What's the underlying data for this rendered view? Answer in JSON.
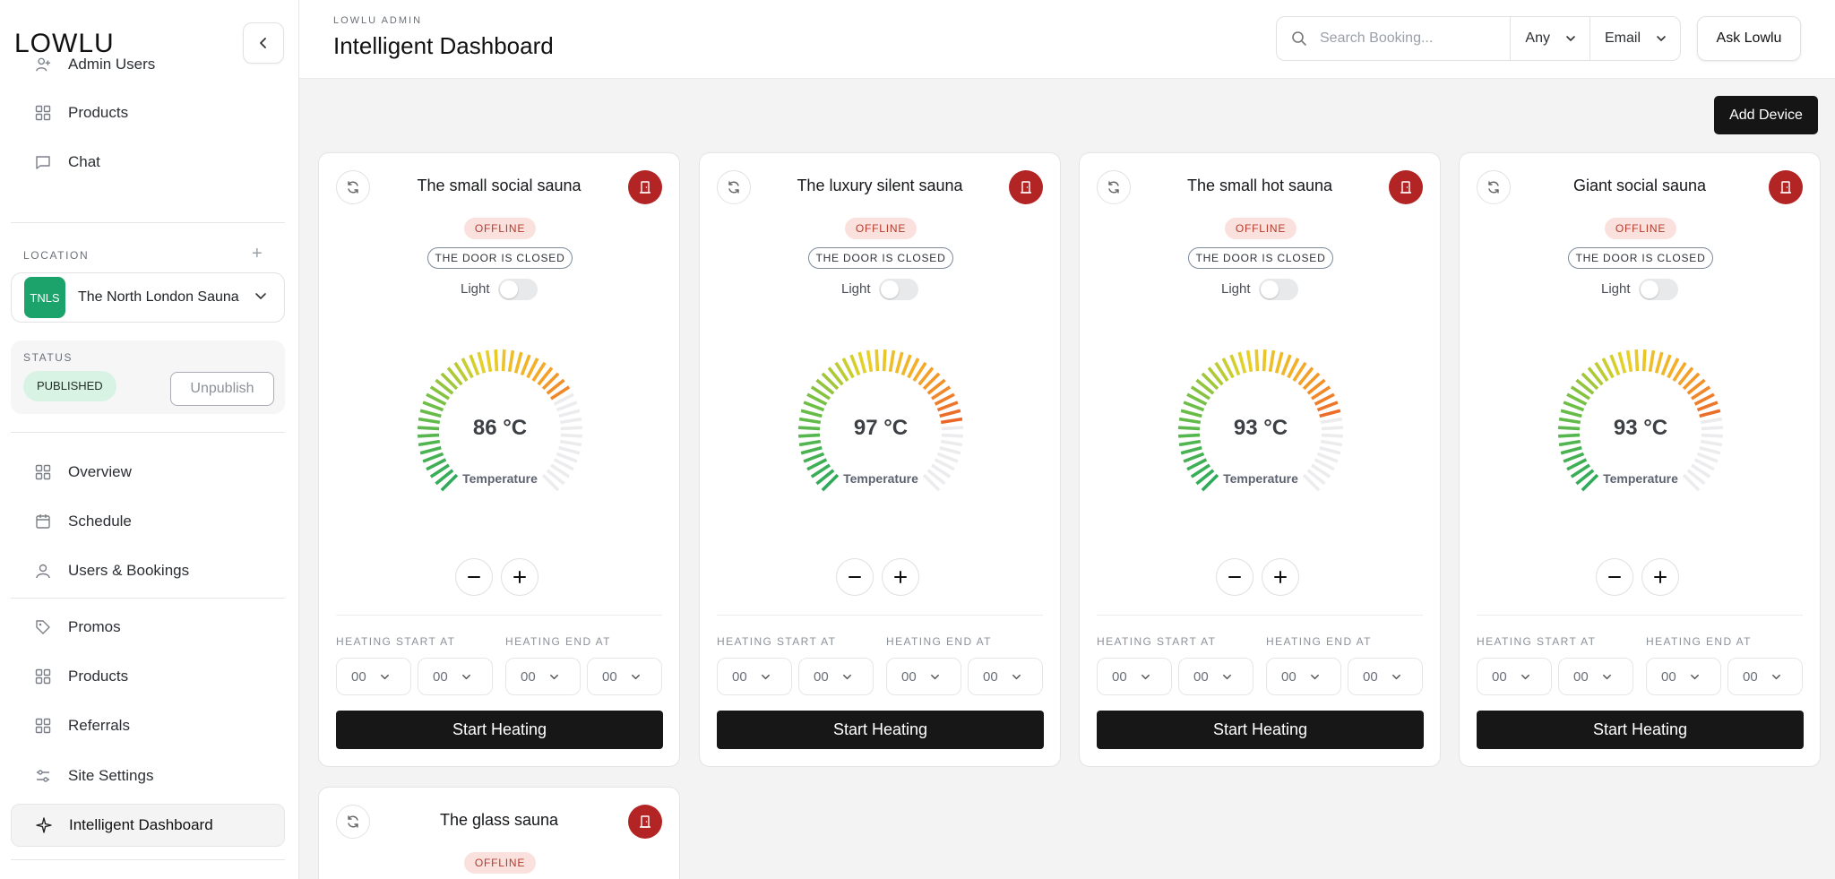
{
  "app": {
    "logo": "LOWLU",
    "breadcrumb": "LOWLU ADMIN",
    "title": "Intelligent Dashboard"
  },
  "search": {
    "placeholder": "Search Booking...",
    "filter_any": "Any",
    "filter_email": "Email",
    "ask_label": "Ask Lowlu"
  },
  "actions": {
    "add_device": "Add Device"
  },
  "sidebar": {
    "nav_top": [
      {
        "label": "Admin Users",
        "icon": "user-plus-icon"
      },
      {
        "label": "Products",
        "icon": "grid-icon"
      },
      {
        "label": "Chat",
        "icon": "chat-icon"
      }
    ],
    "location_label": "LOCATION",
    "location": {
      "badge": "TNLS",
      "name": "The North London Sauna",
      "accent": "#1ca36b"
    },
    "status_label": "STATUS",
    "status_badge": "PUBLISHED",
    "unpublish_label": "Unpublish",
    "nav_main": [
      {
        "label": "Overview",
        "icon": "grid-icon"
      },
      {
        "label": "Schedule",
        "icon": "calendar-icon"
      },
      {
        "label": "Users & Bookings",
        "icon": "user-icon"
      },
      {
        "label": "Promos",
        "icon": "tag-icon"
      },
      {
        "label": "Products",
        "icon": "grid-icon"
      },
      {
        "label": "Referrals",
        "icon": "grid-icon"
      },
      {
        "label": "Site Settings",
        "icon": "sliders-icon"
      },
      {
        "label": "Intelligent Dashboard",
        "icon": "sparkle-icon",
        "active": true
      }
    ]
  },
  "card_labels": {
    "offline": "OFFLINE",
    "door": "THE DOOR IS CLOSED",
    "light": "Light",
    "temperature": "Temperature",
    "heating_start": "HEATING START AT",
    "heating_end": "HEATING END AT",
    "start_button": "Start Heating",
    "time_value": "00"
  },
  "devices": [
    {
      "name": "The small social sauna",
      "temp": 86,
      "unit": "°C",
      "light_on": false
    },
    {
      "name": "The luxury silent sauna",
      "temp": 97,
      "unit": "°C",
      "light_on": false
    },
    {
      "name": "The small hot sauna",
      "temp": 93,
      "unit": "°C",
      "light_on": false
    },
    {
      "name": "Giant social sauna",
      "temp": 93,
      "unit": "°C",
      "light_on": false
    },
    {
      "name": "The glass sauna",
      "temp": null,
      "unit": "°C",
      "light_on": false
    }
  ],
  "gauge": {
    "min": 0,
    "max": 120
  },
  "colors": {
    "brand_dark": "#151515",
    "door_red": "#b32424",
    "offline_bg": "#fbe1de",
    "published_bg": "#d8f3e3"
  }
}
